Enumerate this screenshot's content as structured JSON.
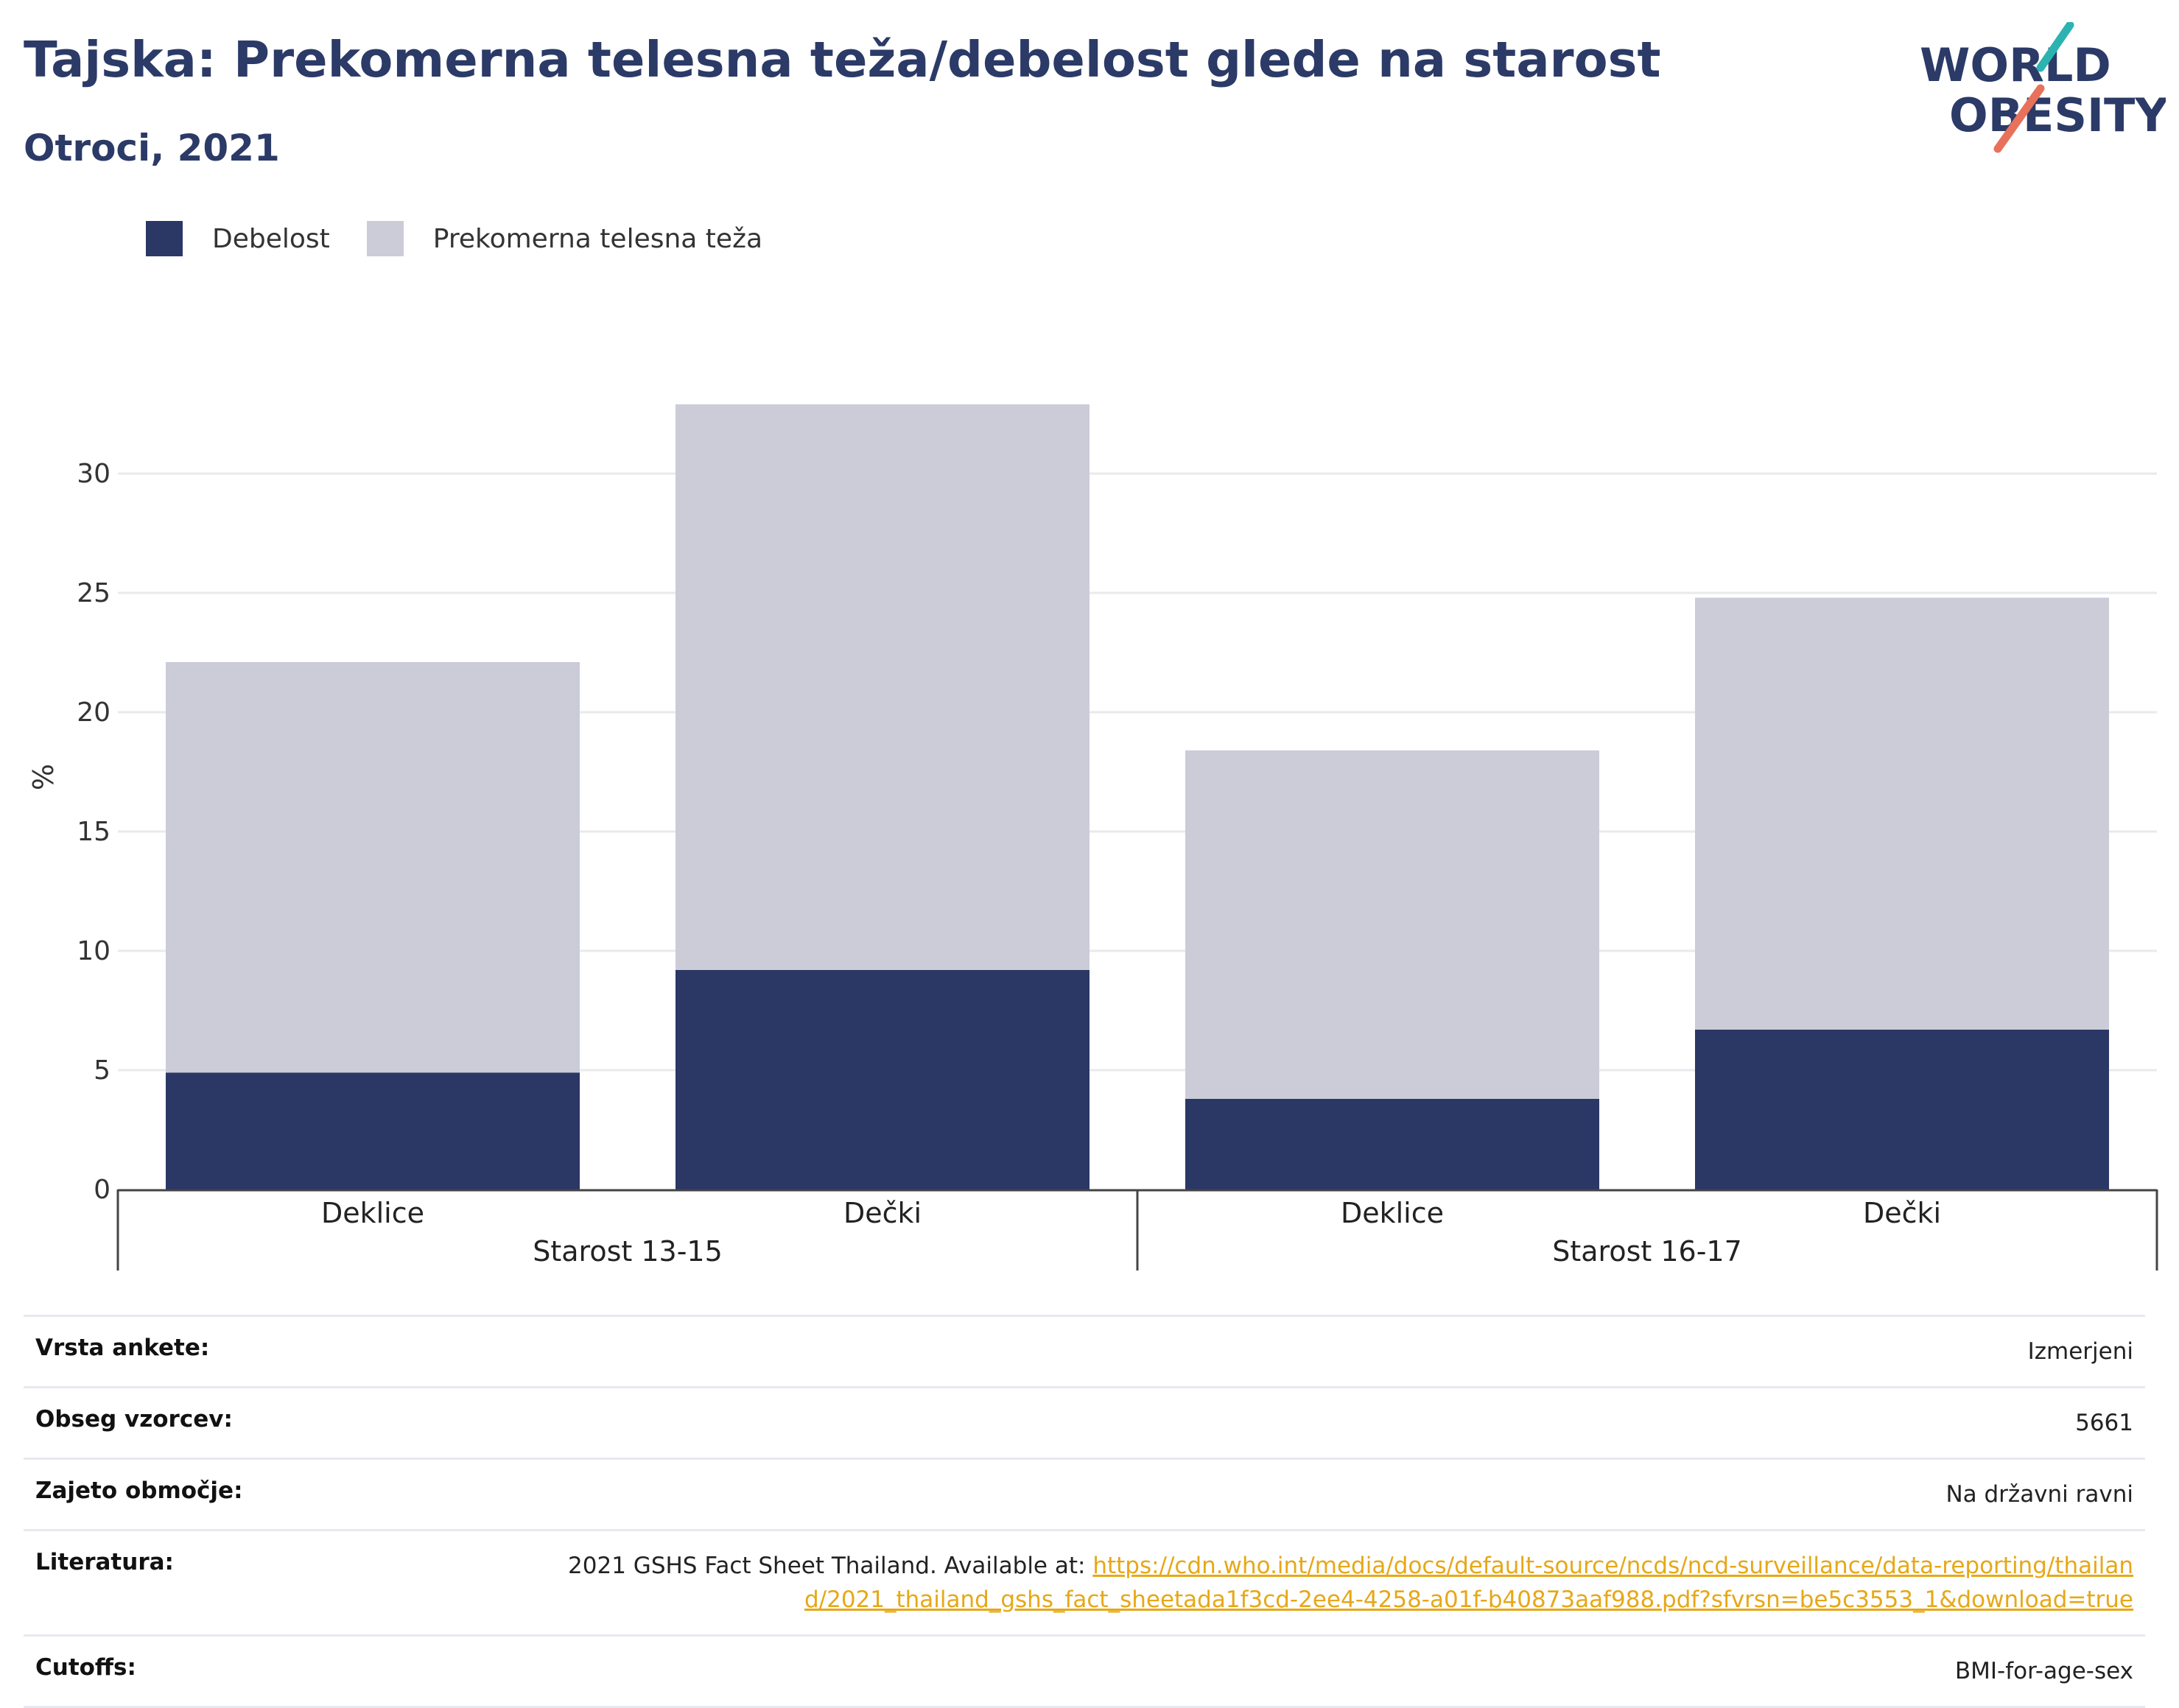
{
  "header": {
    "title": "Tajska: Prekomerna telesna teža/debelost glede na starost",
    "subtitle": "Otroci, 2021",
    "logo_line1": "WORLD",
    "logo_line2": "OBESITY"
  },
  "colors": {
    "title": "#2b3a67",
    "obesity": "#2b3765",
    "overweight": "#cbccd8",
    "grid": "#e9eaee",
    "link": "#e6a817",
    "logo_teal": "#2bb3b1",
    "logo_coral": "#e8715b"
  },
  "chart_data": {
    "type": "bar",
    "stacked": true,
    "ylabel": "%",
    "ylim": [
      0,
      33
    ],
    "yticks": [
      0,
      5,
      10,
      15,
      20,
      25,
      30
    ],
    "grid": true,
    "legend_position": "top-left",
    "groups": [
      {
        "label": "Starost 13-15",
        "categories": [
          "Deklice",
          "Dečki"
        ]
      },
      {
        "label": "Starost 16-17",
        "categories": [
          "Deklice",
          "Dečki"
        ]
      }
    ],
    "categories": [
      "Deklice",
      "Dečki",
      "Deklice",
      "Dečki"
    ],
    "series": [
      {
        "name": "Debelost",
        "color": "#2b3765",
        "values": [
          4.9,
          9.2,
          3.8,
          6.7
        ]
      },
      {
        "name": "Prekomerna telesna teža",
        "color": "#cbccd8",
        "values": [
          17.2,
          23.7,
          14.6,
          18.1
        ]
      }
    ]
  },
  "meta": {
    "rows": [
      {
        "label": "Vrsta ankete:",
        "value": "Izmerjeni"
      },
      {
        "label": "Obseg vzorcev:",
        "value": "5661"
      },
      {
        "label": "Zajeto območje:",
        "value": "Na državni ravni"
      },
      {
        "label": "Literatura:",
        "value": "2021 GSHS Fact Sheet Thailand. Available at: ",
        "link": "https://cdn.who.int/media/docs/default-source/ncds/ncd-surveillance/data-reporting/thailand/2021_thailand_gshs_fact_sheetada1f3cd-2ee4-4258-a01f-b40873aaf988.pdf?sfvrsn=be5c3553_1&download=true"
      },
      {
        "label": "Cutoffs:",
        "value": "BMI-for-age-sex"
      }
    ]
  }
}
